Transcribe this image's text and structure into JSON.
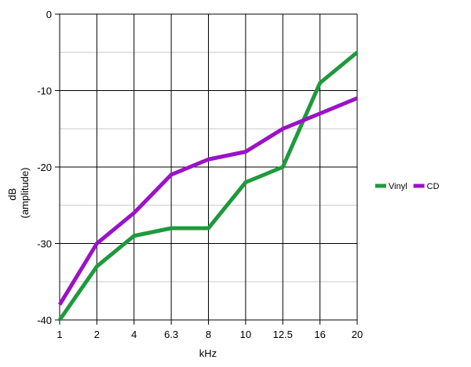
{
  "chart_data": {
    "type": "line",
    "categories": [
      "1",
      "2",
      "4",
      "6.3",
      "8",
      "10",
      "12.5",
      "16",
      "20"
    ],
    "xlabel": "kHz",
    "ylabel": [
      "dB",
      "(amplitude)"
    ],
    "ylim": [
      -40,
      0
    ],
    "yticks": [
      0,
      -10,
      -20,
      -30,
      -40
    ],
    "grid": true,
    "legend_position": "right",
    "series": [
      {
        "name": "Vinyl",
        "color": "#1e9a3c",
        "values": [
          -40,
          -33,
          -29,
          -28,
          -28,
          -22,
          -20,
          -9,
          -5
        ]
      },
      {
        "name": "CD",
        "color": "#9b12c8",
        "values": [
          -38,
          -30,
          -26,
          -21,
          -19,
          -18,
          -15,
          -13,
          -11
        ]
      }
    ]
  }
}
